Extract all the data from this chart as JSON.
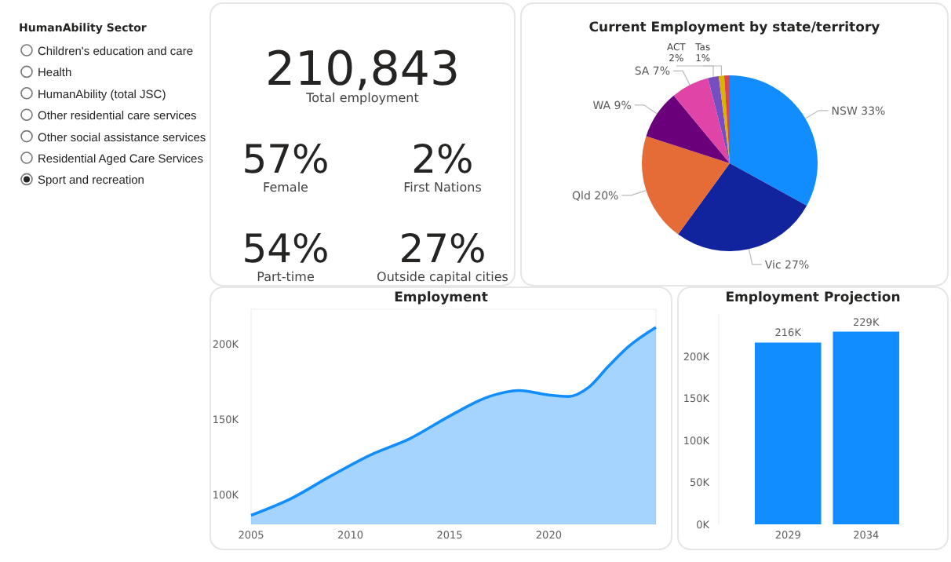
{
  "chart_data": [
    {
      "type": "other",
      "title": "HumanAbility Sector",
      "annotations": [
        "Children's education and care",
        "Health",
        "HumanAbility (total JSC)",
        "Other residential care services",
        "Other social assistance services",
        "Residential Aged Care Services",
        "Sport and recreation"
      ]
    },
    {
      "type": "other",
      "annotations": [
        "210,843",
        "Total employment",
        "57%",
        "Female",
        "2%",
        "First Nations",
        "54%",
        "Part-time",
        "27%",
        "Outside capital cities"
      ]
    },
    {
      "type": "pie",
      "title": "Current Employment by state/territory",
      "categories": [
        "NSW",
        "Vic",
        "Qld",
        "WA",
        "SA",
        "ACT",
        "Tas",
        null
      ],
      "values": [
        33,
        27,
        20,
        9,
        7,
        2,
        1,
        1
      ],
      "value_labels": [
        "33%",
        "27%",
        "20%",
        "9%",
        "7%",
        "2%",
        "1%",
        null
      ],
      "colors": [
        "#118dff",
        "#12239e",
        "#e66c37",
        "#6b007b",
        "#e044a7",
        "#744ec2",
        "#d9b300",
        "#d64550"
      ]
    },
    {
      "type": "area",
      "title": "Employment",
      "x": [
        2005,
        2007,
        2009,
        2011,
        2013,
        2015,
        2017,
        2018.5,
        2020,
        2021,
        2022,
        2023,
        2024,
        2025.4
      ],
      "series": [
        {
          "color": "#118dff",
          "values": [
            86000,
            97000,
            112000,
            126000,
            137000,
            152000,
            165000,
            169000,
            166000,
            165000,
            171000,
            185000,
            198000,
            211000
          ]
        }
      ],
      "xlim": [
        2005,
        2025.4
      ],
      "ylim": [
        80000,
        223000
      ],
      "xticks": [
        2005,
        2010,
        2015,
        2020
      ],
      "yticks": [
        {
          "value": 100000,
          "label": "100K"
        },
        {
          "value": 150000,
          "label": "150K"
        },
        {
          "value": 200000,
          "label": "200K"
        }
      ],
      "grid": false
    },
    {
      "type": "bar",
      "title": "Employment Projection",
      "categories": [
        "2029",
        "2034"
      ],
      "values": [
        216000,
        229000
      ],
      "value_labels": [
        "216K",
        "229K"
      ],
      "color": "#118dff",
      "ylim": [
        0,
        250000
      ],
      "yticks": [
        {
          "value": 0,
          "label": "0K"
        },
        {
          "value": 50000,
          "label": "50K"
        },
        {
          "value": 100000,
          "label": "100K"
        },
        {
          "value": 150000,
          "label": "150K"
        },
        {
          "value": 200000,
          "label": "200K"
        }
      ],
      "grid": false
    }
  ]
}
